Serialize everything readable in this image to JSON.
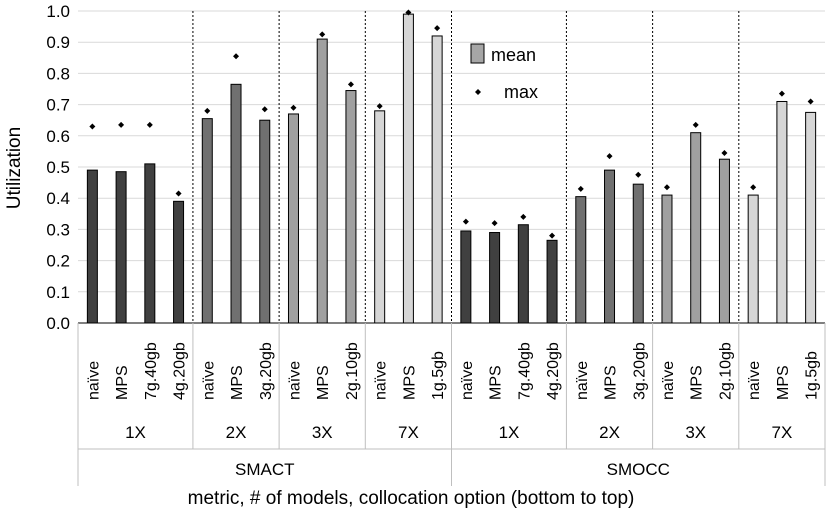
{
  "chart_data": {
    "type": "bar",
    "ylabel": "Utilization",
    "xlabel": "metric, # of models, collocation option (bottom to top)",
    "ylim": [
      0,
      1.0
    ],
    "yticks": [
      "0.0",
      "0.1",
      "0.2",
      "0.3",
      "0.4",
      "0.5",
      "0.6",
      "0.7",
      "0.8",
      "0.9",
      "1.0"
    ],
    "grid": true,
    "legend": {
      "placement": "top-right",
      "items": [
        {
          "label": "mean",
          "kind": "bar"
        },
        {
          "label": "max",
          "kind": "marker"
        }
      ]
    },
    "colors": {
      "1X": "#404040",
      "2X": "#707070",
      "3X": "#a0a0a0",
      "7X": "#d6d6d6",
      "grid": "#d9d9d9",
      "legend_bar": "#a6a6a6"
    },
    "metrics": [
      {
        "name": "SMACT",
        "groups": [
          {
            "label": "1X",
            "bars": [
              {
                "label": "naïve",
                "mean": 0.49,
                "max": 0.63
              },
              {
                "label": "MPS",
                "mean": 0.485,
                "max": 0.635
              },
              {
                "label": "7g.40gb",
                "mean": 0.51,
                "max": 0.635
              },
              {
                "label": "4g.20gb",
                "mean": 0.39,
                "max": 0.415
              }
            ]
          },
          {
            "label": "2X",
            "bars": [
              {
                "label": "naïve",
                "mean": 0.655,
                "max": 0.68
              },
              {
                "label": "MPS",
                "mean": 0.765,
                "max": 0.855
              },
              {
                "label": "3g.20gb",
                "mean": 0.65,
                "max": 0.685
              }
            ]
          },
          {
            "label": "3X",
            "bars": [
              {
                "label": "naïve",
                "mean": 0.67,
                "max": 0.69
              },
              {
                "label": "MPS",
                "mean": 0.91,
                "max": 0.925
              },
              {
                "label": "2g.10gb",
                "mean": 0.745,
                "max": 0.765
              }
            ]
          },
          {
            "label": "7X",
            "bars": [
              {
                "label": "naïve",
                "mean": 0.68,
                "max": 0.695
              },
              {
                "label": "MPS",
                "mean": 0.99,
                "max": 0.995
              },
              {
                "label": "1g.5gb",
                "mean": 0.92,
                "max": 0.945
              }
            ]
          }
        ]
      },
      {
        "name": "SMOCC",
        "groups": [
          {
            "label": "1X",
            "bars": [
              {
                "label": "naïve",
                "mean": 0.295,
                "max": 0.325
              },
              {
                "label": "MPS",
                "mean": 0.29,
                "max": 0.32
              },
              {
                "label": "7g.40gb",
                "mean": 0.315,
                "max": 0.34
              },
              {
                "label": "4g.20gb",
                "mean": 0.265,
                "max": 0.28
              }
            ]
          },
          {
            "label": "2X",
            "bars": [
              {
                "label": "naïve",
                "mean": 0.405,
                "max": 0.43
              },
              {
                "label": "MPS",
                "mean": 0.49,
                "max": 0.535
              },
              {
                "label": "3g.20gb",
                "mean": 0.445,
                "max": 0.475
              }
            ]
          },
          {
            "label": "3X",
            "bars": [
              {
                "label": "naïve",
                "mean": 0.41,
                "max": 0.435
              },
              {
                "label": "MPS",
                "mean": 0.61,
                "max": 0.635
              },
              {
                "label": "2g.10gb",
                "mean": 0.525,
                "max": 0.545
              }
            ]
          },
          {
            "label": "7X",
            "bars": [
              {
                "label": "naïve",
                "mean": 0.41,
                "max": 0.435
              },
              {
                "label": "MPS",
                "mean": 0.71,
                "max": 0.735
              },
              {
                "label": "1g.5gb",
                "mean": 0.675,
                "max": 0.71
              }
            ]
          }
        ]
      }
    ]
  }
}
